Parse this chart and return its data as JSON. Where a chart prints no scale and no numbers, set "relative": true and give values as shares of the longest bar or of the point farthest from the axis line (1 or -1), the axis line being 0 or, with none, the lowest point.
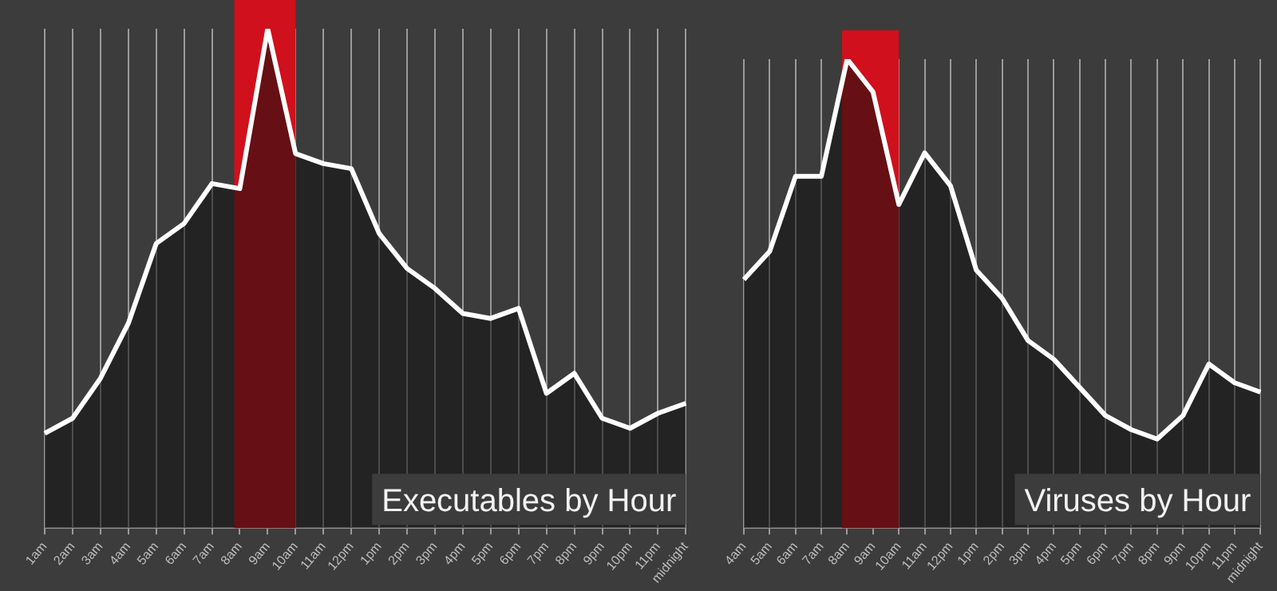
{
  "chart_data": [
    {
      "type": "area",
      "title": "Executables by Hour",
      "relative": true,
      "grid": "x",
      "legend": false,
      "categories": [
        "1am",
        "2am",
        "3am",
        "4am",
        "5am",
        "6am",
        "7am",
        "8am",
        "9am",
        "10am",
        "11am",
        "12pm",
        "1pm",
        "2pm",
        "3pm",
        "4pm",
        "5pm",
        "6pm",
        "7pm",
        "8pm",
        "9pm",
        "10pm",
        "11pm",
        "midnight"
      ],
      "series": [
        {
          "color": "#ffffff",
          "values": [
            0.19,
            0.22,
            0.3,
            0.41,
            0.57,
            0.61,
            0.69,
            0.68,
            1,
            0.75,
            0.73,
            0.72,
            0.59,
            0.52,
            0.48,
            0.43,
            0.42,
            0.44,
            0.27,
            0.31,
            0.22,
            0.2,
            0.23,
            0.25
          ]
        }
      ],
      "bands": [
        {
          "axis": "x",
          "from": "8am",
          "to": "10am",
          "color": "#d0101c"
        }
      ]
    },
    {
      "type": "area",
      "title": "Viruses by Hour",
      "relative": true,
      "grid": "x",
      "legend": false,
      "categories": [
        "4am",
        "5am",
        "6am",
        "7am",
        "8am",
        "9am",
        "10am",
        "11am",
        "12pm",
        "1pm",
        "2pm",
        "3pm",
        "4pm",
        "5pm",
        "6pm",
        "7pm",
        "8pm",
        "9pm",
        "10pm",
        "11pm",
        "midnight"
      ],
      "series": [
        {
          "color": "#ffffff",
          "values": [
            0.53,
            0.59,
            0.75,
            0.75,
            1,
            0.93,
            0.69,
            0.8,
            0.73,
            0.55,
            0.49,
            0.4,
            0.36,
            0.3,
            0.24,
            0.21,
            0.19,
            0.24,
            0.35,
            0.31,
            0.29
          ]
        }
      ],
      "bands": [
        {
          "axis": "x",
          "from": "8am",
          "to": "10am",
          "color": "#d0101c"
        }
      ]
    }
  ]
}
